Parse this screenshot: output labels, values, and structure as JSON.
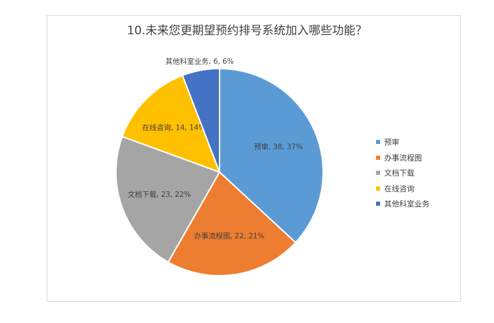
{
  "chart_data": {
    "type": "pie",
    "title": "10.未来您更期望预约排号系统加入哪些功能？",
    "slices": [
      {
        "label": "预审",
        "value": 38,
        "percent": "37%",
        "color": "#5b9bd5"
      },
      {
        "label": "办事流程图",
        "value": 22,
        "percent": "21%",
        "color": "#ed7d31"
      },
      {
        "label": "文档下载",
        "value": 23,
        "percent": "22%",
        "color": "#a5a5a5"
      },
      {
        "label": "在线咨询",
        "value": 14,
        "percent": "14%",
        "color": "#ffc000"
      },
      {
        "label": "其他科室业务",
        "value": 6,
        "percent": "6%",
        "color": "#4472c4"
      }
    ],
    "legend_position": "right"
  }
}
